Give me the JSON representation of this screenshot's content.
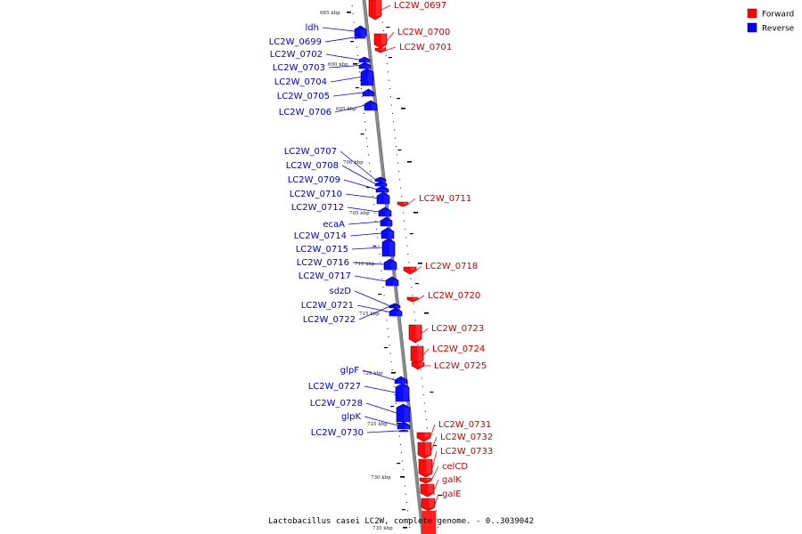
{
  "title": "Lactobacillus casei LC2W, complete genome. - 0..3039042",
  "legend": {
    "forward": "Forward",
    "reverse": "Reverse",
    "forward_color": "#ff0000",
    "reverse_color": "#0000ff"
  },
  "ticks": [
    {
      "label": "685 kbp"
    },
    {
      "label": "690 kbp"
    },
    {
      "label": "695 kbp"
    },
    {
      "label": "700 kbp"
    },
    {
      "label": "705 kbp"
    },
    {
      "label": "710 kbp"
    },
    {
      "label": "715 kbp"
    },
    {
      "label": "720 kbp"
    },
    {
      "label": "725 kbp"
    },
    {
      "label": "730 kbp"
    },
    {
      "label": "735 kbp"
    }
  ],
  "reverse_genes": [
    {
      "label": "ldh"
    },
    {
      "label": "LC2W_0699"
    },
    {
      "label": "LC2W_0702"
    },
    {
      "label": "LC2W_0703"
    },
    {
      "label": "LC2W_0704"
    },
    {
      "label": "LC2W_0705"
    },
    {
      "label": "LC2W_0706"
    },
    {
      "label": "LC2W_0707"
    },
    {
      "label": "LC2W_0708"
    },
    {
      "label": "LC2W_0709"
    },
    {
      "label": "LC2W_0710"
    },
    {
      "label": "LC2W_0712"
    },
    {
      "label": "ecaA"
    },
    {
      "label": "LC2W_0714"
    },
    {
      "label": "LC2W_0715"
    },
    {
      "label": "LC2W_0716"
    },
    {
      "label": "LC2W_0717"
    },
    {
      "label": "sdzD"
    },
    {
      "label": "LC2W_0721"
    },
    {
      "label": "LC2W_0722"
    },
    {
      "label": "glpF"
    },
    {
      "label": "LC2W_0727"
    },
    {
      "label": "LC2W_0728"
    },
    {
      "label": "glpK"
    },
    {
      "label": "LC2W_0730"
    }
  ],
  "forward_genes": [
    {
      "label": "LC2W_0697"
    },
    {
      "label": "LC2W_0700"
    },
    {
      "label": "LC2W_0701"
    },
    {
      "label": "LC2W_0711"
    },
    {
      "label": "LC2W_0718"
    },
    {
      "label": "LC2W_0720"
    },
    {
      "label": "LC2W_0723"
    },
    {
      "label": "LC2W_0724"
    },
    {
      "label": "LC2W_0725"
    },
    {
      "label": "LC2W_0731"
    },
    {
      "label": "LC2W_0732"
    },
    {
      "label": "LC2W_0733"
    },
    {
      "label": "celCD"
    },
    {
      "label": "galK"
    },
    {
      "label": "galE"
    }
  ]
}
